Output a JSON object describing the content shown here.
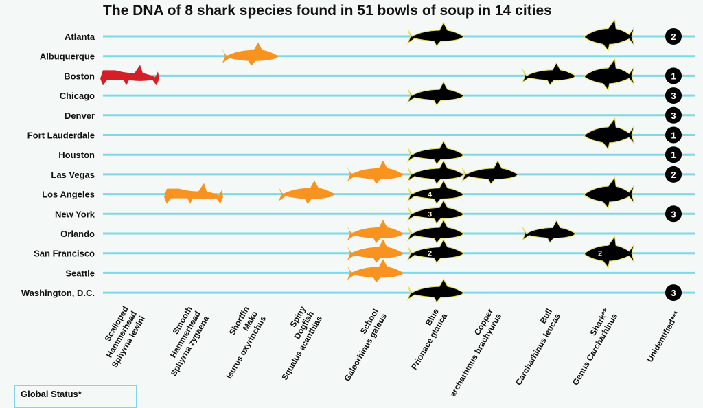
{
  "title": "The DNA of 8 shark species found in 51 bowls of soup in 14 cities",
  "legend": {
    "title": "Global Status*"
  },
  "colors": {
    "row_line": "#7fd7e8",
    "red": "#d41f26",
    "orange": "#f7931e",
    "black": "#000000"
  },
  "chart_data": {
    "type": "table",
    "title": "The DNA of 8 shark species found in 51 bowls of soup in 14 cities",
    "cities": [
      "Atlanta",
      "Albuquerque",
      "Boston",
      "Chicago",
      "Denver",
      "Fort Lauderdale",
      "Houston",
      "Las Vegas",
      "Los Angeles",
      "New York",
      "Orlando",
      "San Francisco",
      "Seattle",
      "Washington, D.C."
    ],
    "species": [
      {
        "common": "Scalloped Hammerhead",
        "latin": "Sphyrna lewini",
        "color": "red"
      },
      {
        "common": "Smooth Hammerhead",
        "latin": "Sphyrna zygaena",
        "color": "orange"
      },
      {
        "common": "Shortfin Mako",
        "latin": "Isurus oxyrinchus",
        "color": "orange"
      },
      {
        "common": "Spiny Dogfish",
        "latin": "Squalus acanthias",
        "color": "orange"
      },
      {
        "common": "School",
        "latin": "Galeorhinus galeus",
        "color": "orange"
      },
      {
        "common": "Blue",
        "latin": "Prionace glauca",
        "color": "black"
      },
      {
        "common": "Copper",
        "latin": "Carcharhinus brachyurus",
        "color": "black"
      },
      {
        "common": "Bull",
        "latin": "Carcharhinus leucas",
        "color": "black"
      },
      {
        "common": "Shark**",
        "latin": "Genus Carcharhinus",
        "color": "black"
      },
      {
        "common": "Unidentified***",
        "latin": "",
        "color": "black"
      }
    ],
    "marks": [
      {
        "city": "Atlanta",
        "species": "Blue",
        "count": ""
      },
      {
        "city": "Atlanta",
        "species": "Shark**",
        "count": ""
      },
      {
        "city": "Atlanta",
        "species": "Unidentified***",
        "count": "2"
      },
      {
        "city": "Albuquerque",
        "species": "Shortfin Mako",
        "count": ""
      },
      {
        "city": "Boston",
        "species": "Scalloped Hammerhead",
        "count": ""
      },
      {
        "city": "Boston",
        "species": "Bull",
        "count": ""
      },
      {
        "city": "Boston",
        "species": "Shark**",
        "count": ""
      },
      {
        "city": "Boston",
        "species": "Unidentified***",
        "count": "1"
      },
      {
        "city": "Chicago",
        "species": "Blue",
        "count": ""
      },
      {
        "city": "Chicago",
        "species": "Unidentified***",
        "count": "3"
      },
      {
        "city": "Denver",
        "species": "Unidentified***",
        "count": "3"
      },
      {
        "city": "Fort Lauderdale",
        "species": "Shark**",
        "count": ""
      },
      {
        "city": "Fort Lauderdale",
        "species": "Unidentified***",
        "count": "1"
      },
      {
        "city": "Houston",
        "species": "Blue",
        "count": ""
      },
      {
        "city": "Houston",
        "species": "Unidentified***",
        "count": "1"
      },
      {
        "city": "Las Vegas",
        "species": "School",
        "count": ""
      },
      {
        "city": "Las Vegas",
        "species": "Blue",
        "count": ""
      },
      {
        "city": "Las Vegas",
        "species": "Copper",
        "count": ""
      },
      {
        "city": "Las Vegas",
        "species": "Unidentified***",
        "count": "2"
      },
      {
        "city": "Los Angeles",
        "species": "Smooth Hammerhead",
        "count": ""
      },
      {
        "city": "Los Angeles",
        "species": "Spiny Dogfish",
        "count": ""
      },
      {
        "city": "Los Angeles",
        "species": "Blue",
        "count": "4"
      },
      {
        "city": "Los Angeles",
        "species": "Shark**",
        "count": ""
      },
      {
        "city": "New York",
        "species": "Blue",
        "count": "3"
      },
      {
        "city": "New York",
        "species": "Unidentified***",
        "count": "3"
      },
      {
        "city": "Orlando",
        "species": "School",
        "count": ""
      },
      {
        "city": "Orlando",
        "species": "Blue",
        "count": ""
      },
      {
        "city": "Orlando",
        "species": "Bull",
        "count": ""
      },
      {
        "city": "San Francisco",
        "species": "School",
        "count": ""
      },
      {
        "city": "San Francisco",
        "species": "Blue",
        "count": "2"
      },
      {
        "city": "San Francisco",
        "species": "Shark**",
        "count": "2"
      },
      {
        "city": "Seattle",
        "species": "School",
        "count": ""
      },
      {
        "city": "Washington, D.C.",
        "species": "Blue",
        "count": ""
      },
      {
        "city": "Washington, D.C.",
        "species": "Unidentified***",
        "count": "3"
      }
    ]
  }
}
